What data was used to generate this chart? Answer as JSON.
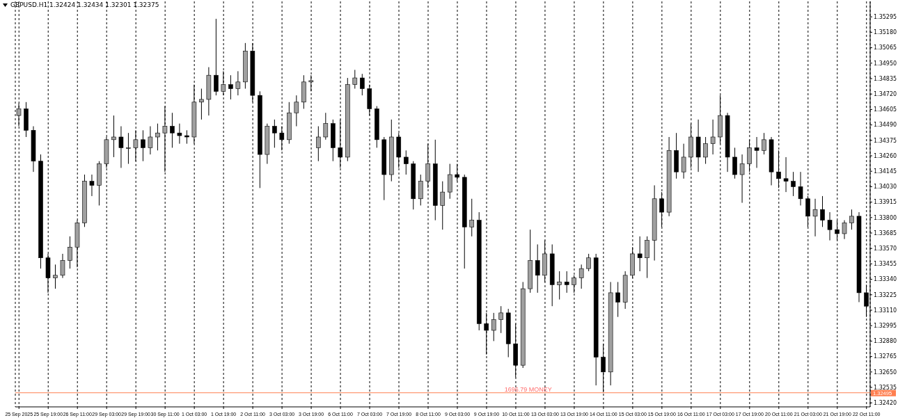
{
  "chart_data": {
    "type": "candlestick",
    "title": "GBPUSD.H1  1.32424 1.32434 1.32301 1.32375",
    "color": "#000000",
    "categories": [
      "25 Sep 2025",
      null,
      null,
      null,
      "25 Sep 19:00",
      null,
      null,
      null,
      "26 Sep 11:00",
      null,
      null,
      null,
      "29 Sep 03:00",
      null,
      null,
      null,
      "29 Sep 19:00",
      null,
      null,
      null,
      "30 Sep 11:00",
      null,
      null,
      null,
      "1 Oct 03:00",
      null,
      null,
      null,
      "1 Oct 19:00",
      null,
      null,
      null,
      "2 Oct 11:00",
      null,
      null,
      null,
      "3 Oct 03:00",
      null,
      null,
      null,
      "3 Oct 19:00",
      null,
      null,
      null,
      "6 Oct 11:00",
      null,
      null,
      null,
      "7 Oct 03:00",
      null,
      null,
      null,
      "7 Oct 19:00",
      null,
      null,
      null,
      "8 Oct 11:00",
      null,
      null,
      null,
      "9 Oct 03:00",
      null,
      null,
      null,
      "9 Oct 19:00",
      null,
      null,
      null,
      "10 Oct 11:00",
      null,
      null,
      null,
      "13 Oct 03:00",
      null,
      null,
      null,
      "13 Oct 19:00",
      null,
      null,
      null,
      "14 Oct 11:00",
      null,
      null,
      null,
      "15 Oct 03:00",
      null,
      null,
      null,
      "15 Oct 19:00",
      null,
      null,
      null,
      "16 Oct 11:00",
      null,
      null,
      null,
      "17 Oct 03:00",
      null,
      null,
      null,
      "17 Oct 19:00",
      null,
      null,
      null,
      "20 Oct 11:00",
      null,
      null,
      null,
      "21 Oct 03:00",
      null,
      null,
      null,
      "21 Oct 19:00",
      null,
      null,
      null,
      "22 Oct 11:00"
    ],
    "ohlc": [
      [
        1.3456,
        1.3465,
        1.3448,
        1.3461
      ],
      [
        1.3461,
        1.3466,
        1.344,
        1.3445
      ],
      [
        1.3445,
        1.3448,
        1.3414,
        1.3422
      ],
      [
        1.3422,
        1.3427,
        1.3342,
        1.335
      ],
      [
        1.335,
        1.3353,
        1.3324,
        1.3335
      ],
      [
        1.3335,
        1.3345,
        1.3327,
        1.3337
      ],
      [
        1.3337,
        1.3353,
        1.3335,
        1.3348
      ],
      [
        1.3348,
        1.3366,
        1.3342,
        1.3358
      ],
      [
        1.3358,
        1.3378,
        1.3343,
        1.3376
      ],
      [
        1.3376,
        1.3412,
        1.3373,
        1.3407
      ],
      [
        1.3407,
        1.3412,
        1.3396,
        1.3404
      ],
      [
        1.3404,
        1.3422,
        1.3389,
        1.342
      ],
      [
        1.342,
        1.344,
        1.3417,
        1.3438
      ],
      [
        1.3438,
        1.3456,
        1.3425,
        1.344
      ],
      [
        1.344,
        1.3448,
        1.3417,
        1.3432
      ],
      [
        1.3432,
        1.3443,
        1.342,
        1.3432
      ],
      [
        1.3432,
        1.3445,
        1.3422,
        1.3438
      ],
      [
        1.3438,
        1.3445,
        1.3422,
        1.3432
      ],
      [
        1.3432,
        1.3448,
        1.3427,
        1.344
      ],
      [
        1.344,
        1.345,
        1.343,
        1.3443
      ],
      [
        1.3443,
        1.3463,
        1.3414,
        1.3448
      ],
      [
        1.3448,
        1.3458,
        1.3432,
        1.3443
      ],
      [
        1.3443,
        1.345,
        1.3435,
        1.3441
      ],
      [
        1.3441,
        1.3445,
        1.3435,
        1.344
      ],
      [
        1.344,
        1.3479,
        1.3435,
        1.3466
      ],
      [
        1.3466,
        1.3476,
        1.3453,
        1.3468
      ],
      [
        1.3468,
        1.3492,
        1.3456,
        1.3486
      ],
      [
        1.3486,
        1.3528,
        1.3471,
        1.3474
      ],
      [
        1.3474,
        1.3489,
        1.3471,
        1.3479
      ],
      [
        1.3479,
        1.3486,
        1.3468,
        1.3476
      ],
      [
        1.3476,
        1.3489,
        1.3471,
        1.3481
      ],
      [
        1.3481,
        1.351,
        1.3476,
        1.3504
      ],
      [
        1.3504,
        1.351,
        1.3466,
        1.3471
      ],
      [
        1.3471,
        1.3474,
        1.3402,
        1.3427
      ],
      [
        1.3427,
        1.345,
        1.342,
        1.3448
      ],
      [
        1.3448,
        1.3453,
        1.3432,
        1.3443
      ],
      [
        1.3443,
        1.3448,
        1.343,
        1.3438
      ],
      [
        1.3438,
        1.3466,
        1.3435,
        1.3458
      ],
      [
        1.3458,
        1.3471,
        1.3448,
        1.3466
      ],
      [
        1.3466,
        1.3486,
        1.3461,
        1.3481
      ],
      [
        1.3481,
        1.3486,
        1.3474,
        1.3482
      ],
      [
        1.3432,
        1.3448,
        1.3422,
        1.344
      ],
      [
        1.344,
        1.3458,
        1.3438,
        1.345
      ],
      [
        1.345,
        1.3453,
        1.3422,
        1.3432
      ],
      [
        1.3432,
        1.3453,
        1.3417,
        1.3425
      ],
      [
        1.3425,
        1.3484,
        1.3422,
        1.3479
      ],
      [
        1.3479,
        1.349,
        1.3476,
        1.3484
      ],
      [
        1.3484,
        1.3487,
        1.3471,
        1.3476
      ],
      [
        1.3476,
        1.3479,
        1.3456,
        1.3461
      ],
      [
        1.3461,
        1.3463,
        1.3432,
        1.3438
      ],
      [
        1.3438,
        1.344,
        1.3393,
        1.3412
      ],
      [
        1.3412,
        1.3453,
        1.3407,
        1.344
      ],
      [
        1.344,
        1.3443,
        1.3417,
        1.3425
      ],
      [
        1.3425,
        1.343,
        1.3412,
        1.342
      ],
      [
        1.342,
        1.3422,
        1.3386,
        1.3394
      ],
      [
        1.3394,
        1.3412,
        1.3389,
        1.3407
      ],
      [
        1.3407,
        1.3435,
        1.3402,
        1.342
      ],
      [
        1.342,
        1.3438,
        1.3378,
        1.3389
      ],
      [
        1.3389,
        1.3407,
        1.3371,
        1.3399
      ],
      [
        1.3399,
        1.342,
        1.3394,
        1.3412
      ],
      [
        1.3412,
        1.342,
        1.3407,
        1.341
      ],
      [
        1.341,
        1.3412,
        1.3342,
        1.3373
      ],
      [
        1.3373,
        1.3394,
        1.3366,
        1.3378
      ],
      [
        1.3378,
        1.3384,
        1.3296,
        1.3301
      ],
      [
        1.3301,
        1.3309,
        1.3278,
        1.3296
      ],
      [
        1.3296,
        1.3309,
        1.3288,
        1.3304
      ],
      [
        1.3304,
        1.3314,
        1.3294,
        1.3309
      ],
      [
        1.3309,
        1.3312,
        1.3276,
        1.3286
      ],
      [
        1.3286,
        1.3301,
        1.3261,
        1.327
      ],
      [
        1.327,
        1.3332,
        1.3268,
        1.3327
      ],
      [
        1.3327,
        1.3371,
        1.3324,
        1.3348
      ],
      [
        1.3348,
        1.336,
        1.3324,
        1.3337
      ],
      [
        1.3337,
        1.3363,
        1.3332,
        1.3353
      ],
      [
        1.3353,
        1.336,
        1.3314,
        1.333
      ],
      [
        1.333,
        1.334,
        1.3319,
        1.3332
      ],
      [
        1.3332,
        1.334,
        1.3324,
        1.333
      ],
      [
        1.333,
        1.3337,
        1.3324,
        1.3335
      ],
      [
        1.3335,
        1.3345,
        1.3327,
        1.3342
      ],
      [
        1.3342,
        1.3353,
        1.334,
        1.335
      ],
      [
        1.335,
        1.3353,
        1.3255,
        1.3276
      ],
      [
        1.3276,
        1.3286,
        1.325,
        1.3265
      ],
      [
        1.3265,
        1.3332,
        1.3255,
        1.3324
      ],
      [
        1.3324,
        1.3332,
        1.3306,
        1.3317
      ],
      [
        1.3317,
        1.334,
        1.3312,
        1.3337
      ],
      [
        1.3337,
        1.3358,
        1.3335,
        1.3353
      ],
      [
        1.3353,
        1.3366,
        1.334,
        1.335
      ],
      [
        1.335,
        1.3366,
        1.3335,
        1.3363
      ],
      [
        1.3363,
        1.3404,
        1.3348,
        1.3394
      ],
      [
        1.3394,
        1.3399,
        1.3373,
        1.3384
      ],
      [
        1.3384,
        1.344,
        1.3381,
        1.343
      ],
      [
        1.343,
        1.3443,
        1.3409,
        1.3414
      ],
      [
        1.3414,
        1.3435,
        1.3409,
        1.3425
      ],
      [
        1.3425,
        1.345,
        1.3417,
        1.344
      ],
      [
        1.344,
        1.3453,
        1.3414,
        1.3425
      ],
      [
        1.3425,
        1.344,
        1.342,
        1.3435
      ],
      [
        1.3435,
        1.3453,
        1.3427,
        1.344
      ],
      [
        1.344,
        1.3471,
        1.3435,
        1.3456
      ],
      [
        1.3456,
        1.3458,
        1.3414,
        1.3425
      ],
      [
        1.3425,
        1.3432,
        1.3409,
        1.3412
      ],
      [
        1.3412,
        1.3427,
        1.3391,
        1.342
      ],
      [
        1.342,
        1.3438,
        1.3414,
        1.3432
      ],
      [
        1.3432,
        1.344,
        1.3417,
        1.343
      ],
      [
        1.343,
        1.3443,
        1.3427,
        1.3438
      ],
      [
        1.3438,
        1.344,
        1.3404,
        1.3414
      ],
      [
        1.3414,
        1.343,
        1.3402,
        1.3409
      ],
      [
        1.3409,
        1.3425,
        1.3399,
        1.3407
      ],
      [
        1.3407,
        1.3414,
        1.3396,
        1.3403
      ],
      [
        1.3403,
        1.3414,
        1.3389,
        1.3394
      ],
      [
        1.3394,
        1.3396,
        1.3373,
        1.3381
      ],
      [
        1.3381,
        1.3394,
        1.3366,
        1.3386
      ],
      [
        1.3386,
        1.3396,
        1.3373,
        1.3378
      ],
      [
        1.3378,
        1.3384,
        1.3363,
        1.3371
      ],
      [
        1.3371,
        1.3378,
        1.3363,
        1.3368
      ],
      [
        1.3368,
        1.3378,
        1.3364,
        1.3376
      ],
      [
        1.3376,
        1.3386,
        1.3371,
        1.3381
      ],
      [
        1.3381,
        1.3384,
        1.3317,
        1.3324
      ],
      [
        1.3324,
        1.333,
        1.3306,
        1.3314
      ]
    ],
    "ylim": [
      1.3239,
      1.3541
    ],
    "yticks": [
      {
        "value": 1.35295,
        "label": "1.35295"
      },
      {
        "value": 1.3518,
        "label": "1.35180"
      },
      {
        "value": 1.35065,
        "label": "1.35065"
      },
      {
        "value": 1.3495,
        "label": "1.34950"
      },
      {
        "value": 1.34835,
        "label": "1.34835"
      },
      {
        "value": 1.3472,
        "label": "1.34720"
      },
      {
        "value": 1.34605,
        "label": "1.34605"
      },
      {
        "value": 1.3449,
        "label": "1.34490"
      },
      {
        "value": 1.34375,
        "label": "1.34375"
      },
      {
        "value": 1.3426,
        "label": "1.34260"
      },
      {
        "value": 1.34145,
        "label": "1.34145"
      },
      {
        "value": 1.3403,
        "label": "1.34030"
      },
      {
        "value": 1.33915,
        "label": "1.33915"
      },
      {
        "value": 1.338,
        "label": "1.33800"
      },
      {
        "value": 1.33685,
        "label": "1.33685"
      },
      {
        "value": 1.3357,
        "label": "1.33570"
      },
      {
        "value": 1.33455,
        "label": "1.33455"
      },
      {
        "value": 1.3334,
        "label": "1.33340"
      },
      {
        "value": 1.33225,
        "label": "1.33225"
      },
      {
        "value": 1.3311,
        "label": "1.33110"
      },
      {
        "value": 1.32995,
        "label": "1.32995"
      },
      {
        "value": 1.3288,
        "label": "1.32880"
      },
      {
        "value": 1.32765,
        "label": "1.32765"
      },
      {
        "value": 1.3265,
        "label": "1.32650"
      },
      {
        "value": 1.32535,
        "label": "1.32535"
      },
      {
        "value": 1.3242,
        "label": "1.32420"
      }
    ],
    "grid": "x",
    "ref_lines": [
      {
        "axis": "y",
        "value": 1.32495,
        "label": "1696.79 MONEY",
        "color": "#ff7f50"
      }
    ],
    "annotations": [
      "1.32495"
    ]
  }
}
